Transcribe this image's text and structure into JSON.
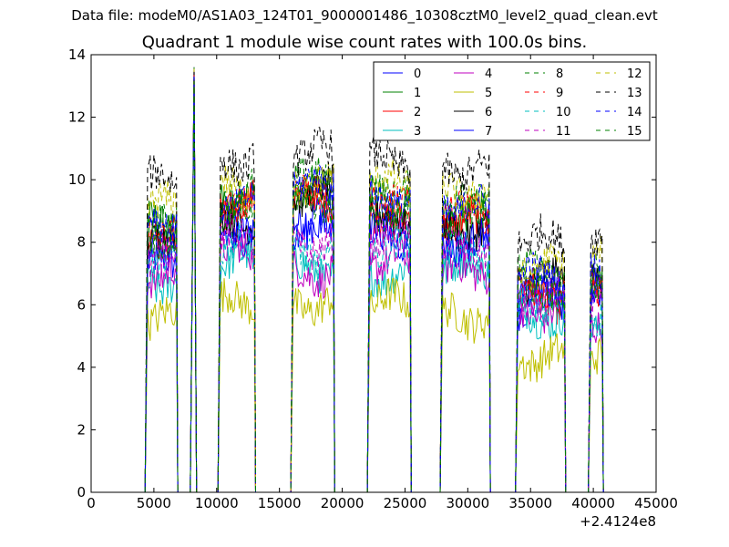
{
  "figure": {
    "suptitle": "Data file: modeM0/AS1A03_124T01_9000001486_10308cztM0_level2_quad_clean.evt",
    "title": "Quadrant 1 module wise count rates with 100.0s bins.",
    "x_offset_label": "+2.4124e8"
  },
  "chart_data": {
    "type": "line",
    "title": "Quadrant 1 module wise count rates with 100.0s bins.",
    "xlabel": "",
    "ylabel": "",
    "xlim": [
      0,
      45000
    ],
    "ylim": [
      0,
      14
    ],
    "x_offset": "+2.4124e8",
    "xticks": [
      "0",
      "5000",
      "10000",
      "15000",
      "20000",
      "25000",
      "30000",
      "35000",
      "40000",
      "45000"
    ],
    "yticks": [
      "0",
      "2",
      "4",
      "6",
      "8",
      "10",
      "12",
      "14"
    ],
    "grid": false,
    "legend_position": "top-right",
    "segments": [
      {
        "start": 4500,
        "end": 6800
      },
      {
        "start": 10300,
        "end": 13000
      },
      {
        "start": 16100,
        "end": 19300
      },
      {
        "start": 22200,
        "end": 25400
      },
      {
        "start": 28000,
        "end": 31700
      },
      {
        "start": 34000,
        "end": 37700
      },
      {
        "start": 39800,
        "end": 40700
      }
    ],
    "spikes": [
      {
        "start": 7900,
        "end": 8400,
        "peak_x": 8200,
        "peak": 13.6
      }
    ],
    "series": [
      {
        "name": "0",
        "color": "#0000ff",
        "dash": "solid",
        "levels": [
          7.3,
          8.6,
          8.9,
          8.6,
          8.1,
          6.0,
          6.1
        ]
      },
      {
        "name": "1",
        "color": "#008000",
        "dash": "solid",
        "levels": [
          8.5,
          9.4,
          9.6,
          9.3,
          8.9,
          6.4,
          6.5
        ]
      },
      {
        "name": "2",
        "color": "#ff0000",
        "dash": "solid",
        "levels": [
          8.1,
          9.2,
          9.4,
          8.8,
          8.6,
          6.2,
          6.3
        ]
      },
      {
        "name": "3",
        "color": "#00bfbf",
        "dash": "solid",
        "levels": [
          6.7,
          7.4,
          7.1,
          7.0,
          7.2,
          5.6,
          5.4
        ]
      },
      {
        "name": "4",
        "color": "#bf00bf",
        "dash": "solid",
        "levels": [
          7.0,
          7.7,
          7.0,
          7.4,
          7.1,
          5.8,
          5.5
        ]
      },
      {
        "name": "5",
        "color": "#bfbf00",
        "dash": "solid",
        "levels": [
          5.6,
          6.1,
          6.0,
          6.1,
          5.6,
          4.3,
          4.4
        ]
      },
      {
        "name": "6",
        "color": "#000000",
        "dash": "solid",
        "levels": [
          8.0,
          8.7,
          9.6,
          8.7,
          8.4,
          6.8,
          6.7
        ]
      },
      {
        "name": "7",
        "color": "#0000ff",
        "dash": "solid",
        "levels": [
          7.6,
          8.3,
          8.3,
          8.2,
          8.0,
          6.3,
          6.2
        ]
      },
      {
        "name": "8",
        "color": "#008000",
        "dash": "dashed",
        "levels": [
          8.8,
          9.6,
          10.0,
          9.7,
          9.5,
          7.0,
          7.1
        ]
      },
      {
        "name": "9",
        "color": "#ff0000",
        "dash": "dashed",
        "levels": [
          8.4,
          9.1,
          9.5,
          9.4,
          9.0,
          6.6,
          6.7
        ]
      },
      {
        "name": "10",
        "color": "#00bfbf",
        "dash": "dashed",
        "levels": [
          7.4,
          7.8,
          7.6,
          7.8,
          7.6,
          6.0,
          5.8
        ]
      },
      {
        "name": "11",
        "color": "#bf00bf",
        "dash": "dashed",
        "levels": [
          7.6,
          8.1,
          7.9,
          8.1,
          7.8,
          6.2,
          6.0
        ]
      },
      {
        "name": "12",
        "color": "#bfbf00",
        "dash": "dashed",
        "levels": [
          9.2,
          9.8,
          9.9,
          9.9,
          9.6,
          7.2,
          7.5
        ]
      },
      {
        "name": "13",
        "color": "#000000",
        "dash": "dashed",
        "levels": [
          10.0,
          10.6,
          10.9,
          10.6,
          10.3,
          8.1,
          7.9
        ]
      },
      {
        "name": "14",
        "color": "#0000ff",
        "dash": "dashed",
        "levels": [
          8.6,
          9.3,
          9.8,
          9.4,
          9.1,
          6.9,
          6.9
        ]
      },
      {
        "name": "15",
        "color": "#008000",
        "dash": "dashed",
        "levels": [
          8.2,
          9.0,
          9.2,
          9.0,
          8.8,
          6.5,
          6.6
        ]
      }
    ]
  }
}
